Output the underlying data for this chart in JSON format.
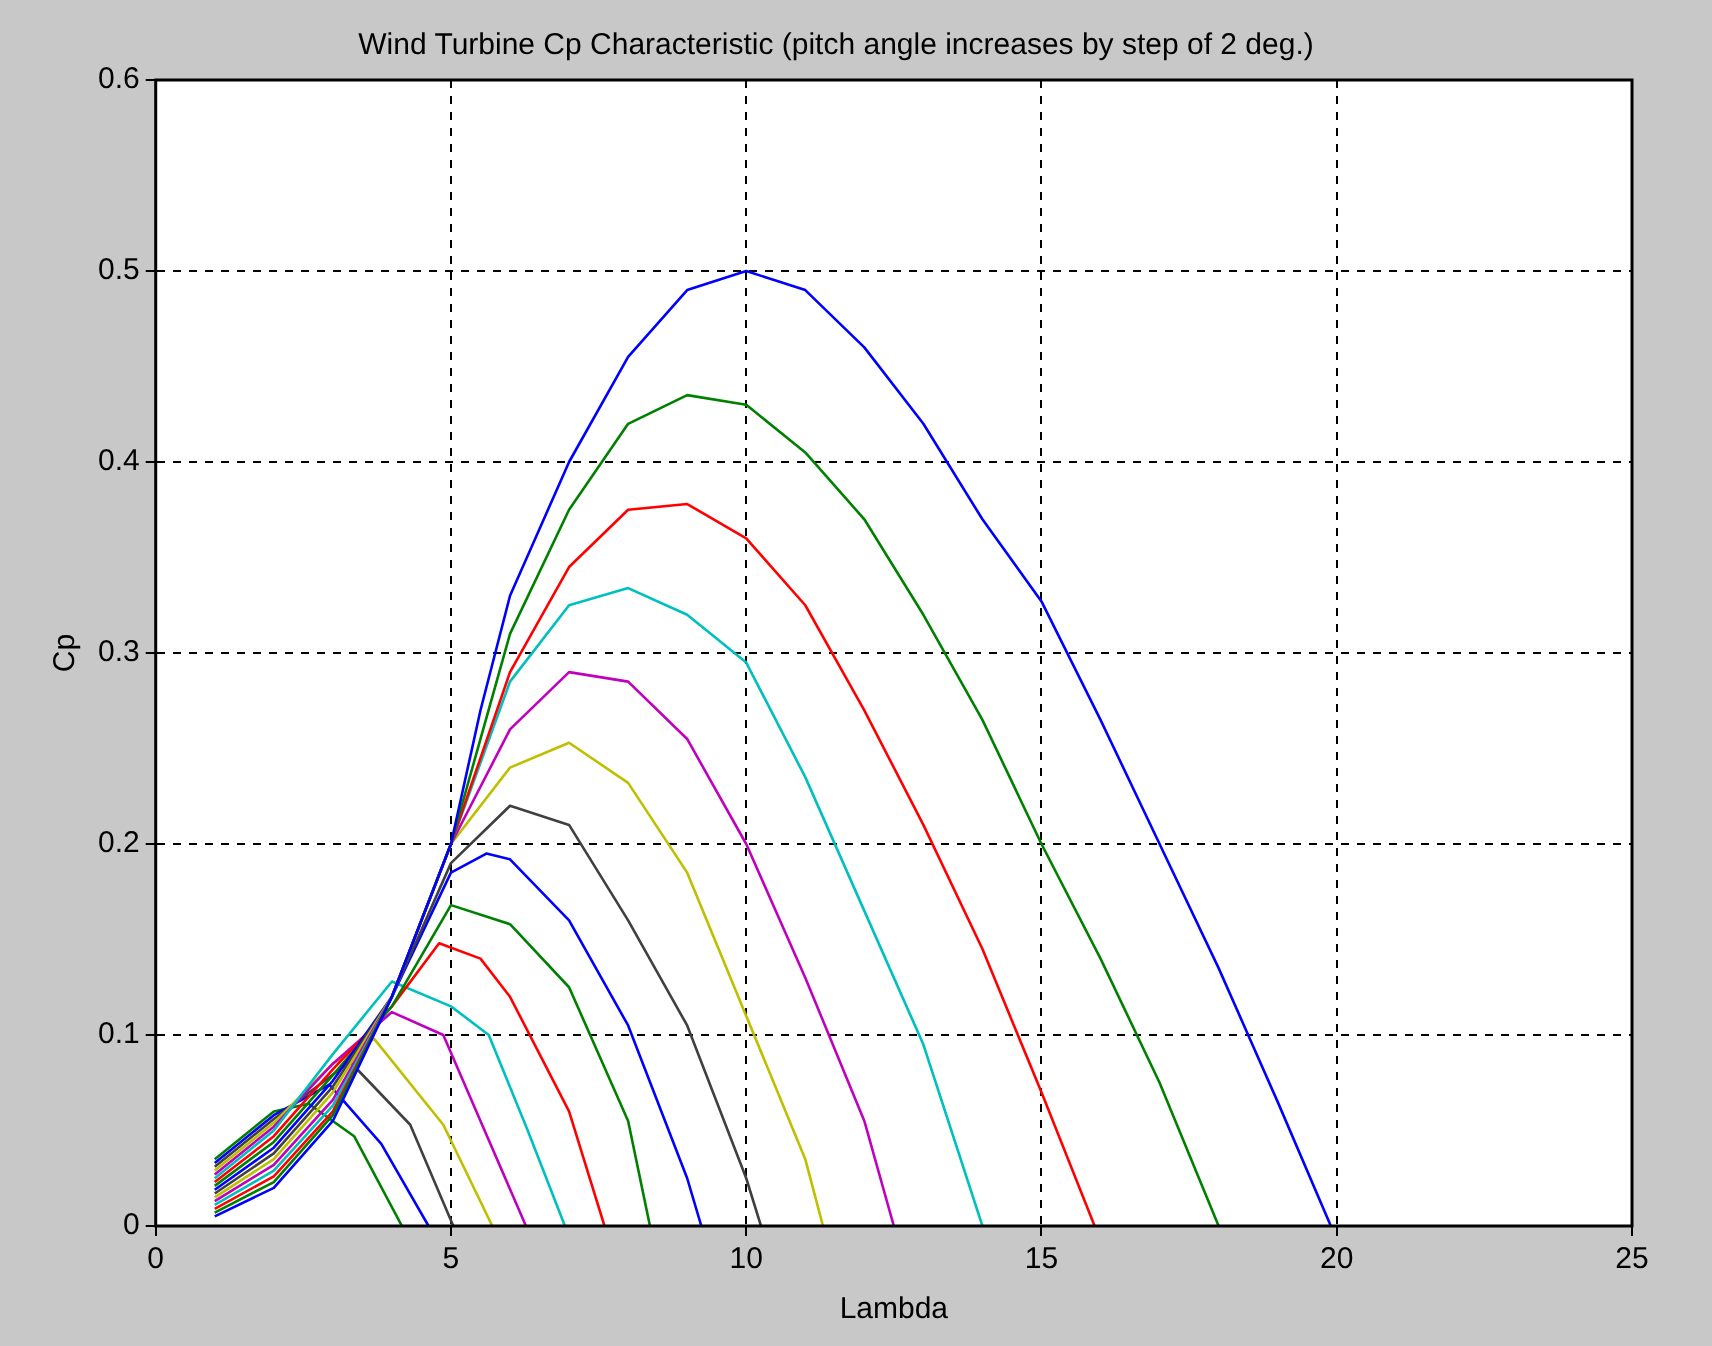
{
  "chart_data": {
    "type": "line",
    "title": "Wind Turbine Cp Characteristic (pitch angle increases by step of 2 deg.)",
    "xlabel": "Lambda",
    "ylabel": "Cp",
    "xlim": [
      0,
      25
    ],
    "ylim": [
      0,
      0.6
    ],
    "xticks": [
      0,
      5,
      10,
      15,
      20,
      25
    ],
    "yticks": [
      0,
      0.1,
      0.2,
      0.3,
      0.4,
      0.5,
      0.6
    ],
    "grid": true,
    "legend": false,
    "marker": "none",
    "line_style": "solid",
    "series": [
      {
        "color": "#0000ff",
        "x": [
          1,
          2,
          3,
          4,
          5,
          5.5,
          6,
          7,
          8,
          9,
          10,
          11,
          12,
          13,
          14,
          15,
          16,
          17,
          18,
          19,
          19.9
        ],
        "values": [
          0.005,
          0.02,
          0.055,
          0.12,
          0.2,
          0.27,
          0.33,
          0.4,
          0.455,
          0.49,
          0.5,
          0.49,
          0.46,
          0.42,
          0.37,
          0.327,
          0.265,
          0.2,
          0.135,
          0.065,
          0
        ]
      },
      {
        "color": "#008000",
        "x": [
          1,
          2,
          3,
          4,
          5,
          6,
          7,
          8,
          9,
          10,
          11,
          12,
          13,
          14,
          15,
          16,
          17,
          18
        ],
        "values": [
          0.007,
          0.023,
          0.058,
          0.12,
          0.2,
          0.31,
          0.375,
          0.42,
          0.435,
          0.43,
          0.405,
          0.37,
          0.32,
          0.265,
          0.2,
          0.14,
          0.075,
          0
        ]
      },
      {
        "color": "#ff0000",
        "x": [
          1,
          2,
          3,
          4,
          5,
          6,
          7,
          8,
          9,
          10,
          11,
          12,
          13,
          14,
          15,
          15.9
        ],
        "values": [
          0.009,
          0.026,
          0.06,
          0.12,
          0.2,
          0.29,
          0.345,
          0.375,
          0.378,
          0.36,
          0.325,
          0.27,
          0.21,
          0.145,
          0.07,
          0
        ]
      },
      {
        "color": "#00bfbf",
        "x": [
          1,
          2,
          3,
          4,
          5,
          6,
          7,
          8,
          9,
          10,
          11,
          12,
          13,
          14
        ],
        "values": [
          0.011,
          0.029,
          0.063,
          0.12,
          0.2,
          0.285,
          0.325,
          0.334,
          0.32,
          0.295,
          0.235,
          0.165,
          0.095,
          0
        ]
      },
      {
        "color": "#bf00bf",
        "x": [
          1,
          2,
          3,
          4,
          5,
          6,
          7,
          8,
          9,
          10,
          11,
          12,
          12.5
        ],
        "values": [
          0.013,
          0.032,
          0.066,
          0.12,
          0.2,
          0.26,
          0.29,
          0.285,
          0.255,
          0.2,
          0.13,
          0.055,
          0
        ]
      },
      {
        "color": "#bfbf00",
        "x": [
          1,
          2,
          3,
          4,
          5,
          6,
          7,
          8,
          9,
          10,
          11,
          11.3
        ],
        "values": [
          0.015,
          0.035,
          0.07,
          0.12,
          0.2,
          0.24,
          0.253,
          0.232,
          0.185,
          0.11,
          0.035,
          0
        ]
      },
      {
        "color": "#404040",
        "x": [
          1,
          2,
          3,
          4,
          5,
          6,
          7,
          8,
          9,
          10,
          10.25
        ],
        "values": [
          0.017,
          0.038,
          0.073,
          0.12,
          0.19,
          0.22,
          0.21,
          0.16,
          0.105,
          0.025,
          0
        ]
      },
      {
        "color": "#0000ff",
        "x": [
          1,
          2,
          3,
          4,
          5,
          5.6,
          6,
          7,
          8,
          9,
          9.24
        ],
        "values": [
          0.019,
          0.041,
          0.076,
          0.12,
          0.185,
          0.195,
          0.192,
          0.16,
          0.105,
          0.025,
          0
        ]
      },
      {
        "color": "#008000",
        "x": [
          1,
          2,
          3,
          4,
          5,
          6,
          7,
          8,
          8.37
        ],
        "values": [
          0.021,
          0.044,
          0.079,
          0.115,
          0.168,
          0.158,
          0.125,
          0.055,
          0
        ]
      },
      {
        "color": "#ff0000",
        "x": [
          1,
          2,
          3,
          4,
          4.8,
          5.5,
          6,
          7,
          7.6
        ],
        "values": [
          0.023,
          0.047,
          0.082,
          0.115,
          0.148,
          0.14,
          0.12,
          0.06,
          0
        ]
      },
      {
        "color": "#00bfbf",
        "x": [
          1,
          2,
          3,
          4,
          5,
          5.64,
          6.3,
          6.93
        ],
        "values": [
          0.025,
          0.05,
          0.09,
          0.128,
          0.115,
          0.1,
          0.05,
          0
        ]
      },
      {
        "color": "#bf00bf",
        "x": [
          1,
          2,
          3,
          4,
          4.87,
          5.5,
          6.27
        ],
        "values": [
          0.027,
          0.052,
          0.085,
          0.112,
          0.1,
          0.055,
          0
        ]
      },
      {
        "color": "#bfbf00",
        "x": [
          1,
          2,
          3,
          3.7,
          4.87,
          5.7
        ],
        "values": [
          0.029,
          0.054,
          0.085,
          0.098,
          0.053,
          0
        ]
      },
      {
        "color": "#404040",
        "x": [
          1,
          2,
          3.29,
          4.31,
          5.04
        ],
        "values": [
          0.031,
          0.056,
          0.086,
          0.053,
          0
        ]
      },
      {
        "color": "#0000ff",
        "x": [
          1,
          2,
          2.94,
          3.82,
          4.62
        ],
        "values": [
          0.033,
          0.058,
          0.074,
          0.043,
          0
        ]
      },
      {
        "color": "#008000",
        "x": [
          1,
          2,
          2.59,
          3.36,
          4.17
        ],
        "values": [
          0.035,
          0.06,
          0.064,
          0.047,
          0
        ]
      }
    ]
  }
}
